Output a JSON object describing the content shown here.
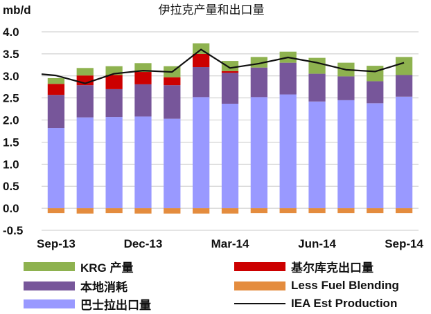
{
  "chart_data": {
    "type": "bar",
    "stacked": true,
    "title": "伊拉克产量和出口量",
    "ylabel": "mb/d",
    "xlabel": "",
    "ylim": [
      -0.5,
      4.0
    ],
    "yticks": [
      "4.0",
      "3.5",
      "3.0",
      "2.5",
      "2.0",
      "1.5",
      "1.0",
      "0.5",
      "0.0",
      "-0.5"
    ],
    "ytick_values": [
      4.0,
      3.5,
      3.0,
      2.5,
      2.0,
      1.5,
      1.0,
      0.5,
      0.0,
      -0.5
    ],
    "categories": [
      "Sep-13",
      "Oct-13",
      "Nov-13",
      "Dec-13",
      "Jan-14",
      "Feb-14",
      "Mar-14",
      "Apr-14",
      "May-14",
      "Jun-14",
      "Jul-14",
      "Aug-14",
      "Sep-14"
    ],
    "xtick_labels": [
      {
        "index": 0,
        "label": "Sep-13"
      },
      {
        "index": 3,
        "label": "Dec-13"
      },
      {
        "index": 6,
        "label": "Mar-14"
      },
      {
        "index": 9,
        "label": "Jun-14"
      },
      {
        "index": 12,
        "label": "Sep-14"
      }
    ],
    "grid": true,
    "legend_position": "bottom",
    "series": [
      {
        "name": "巴士拉出口量",
        "color": "#9999ff",
        "values": [
          1.82,
          2.06,
          2.07,
          2.08,
          2.03,
          2.52,
          2.37,
          2.52,
          2.58,
          2.42,
          2.45,
          2.38,
          2.53
        ]
      },
      {
        "name": "本地消耗",
        "color": "#77569a",
        "values": [
          0.75,
          0.73,
          0.63,
          0.73,
          0.76,
          0.68,
          0.7,
          0.67,
          0.72,
          0.63,
          0.54,
          0.5,
          0.49
        ]
      },
      {
        "name": "基尔库克出口量",
        "color": "#cc0000",
        "values": [
          0.25,
          0.22,
          0.32,
          0.28,
          0.18,
          0.3,
          0.04,
          0.0,
          0.0,
          0.0,
          0.0,
          0.0,
          0.0
        ]
      },
      {
        "name": "KRG 产量",
        "color": "#8eb24f",
        "values": [
          0.13,
          0.17,
          0.2,
          0.2,
          0.25,
          0.24,
          0.23,
          0.24,
          0.25,
          0.36,
          0.31,
          0.35,
          0.41
        ]
      },
      {
        "name": "Less Fuel Blending",
        "color": "#e48c3e",
        "values": [
          -0.11,
          -0.12,
          -0.11,
          -0.12,
          -0.12,
          -0.12,
          -0.12,
          -0.11,
          -0.11,
          -0.11,
          -0.11,
          -0.11,
          -0.11
        ]
      }
    ],
    "line_series": {
      "name": "IEA Est Production",
      "color": "#111111",
      "values": [
        3.01,
        2.83,
        3.05,
        3.12,
        3.09,
        3.6,
        3.18,
        3.28,
        3.42,
        3.3,
        3.14,
        3.1,
        3.3
      ],
      "start_value": 3.04
    },
    "legend": [
      {
        "label": "KRG 产量",
        "color": "#8eb24f",
        "kind": "box"
      },
      {
        "label": "基尔库克出口量",
        "color": "#cc0000",
        "kind": "box"
      },
      {
        "label": "本地消耗",
        "color": "#77569a",
        "kind": "box"
      },
      {
        "label": "Less Fuel Blending",
        "color": "#e48c3e",
        "kind": "box"
      },
      {
        "label": "巴士拉出口量",
        "color": "#9999ff",
        "kind": "box"
      },
      {
        "label": "IEA Est Production",
        "color": "#111111",
        "kind": "line"
      }
    ]
  }
}
